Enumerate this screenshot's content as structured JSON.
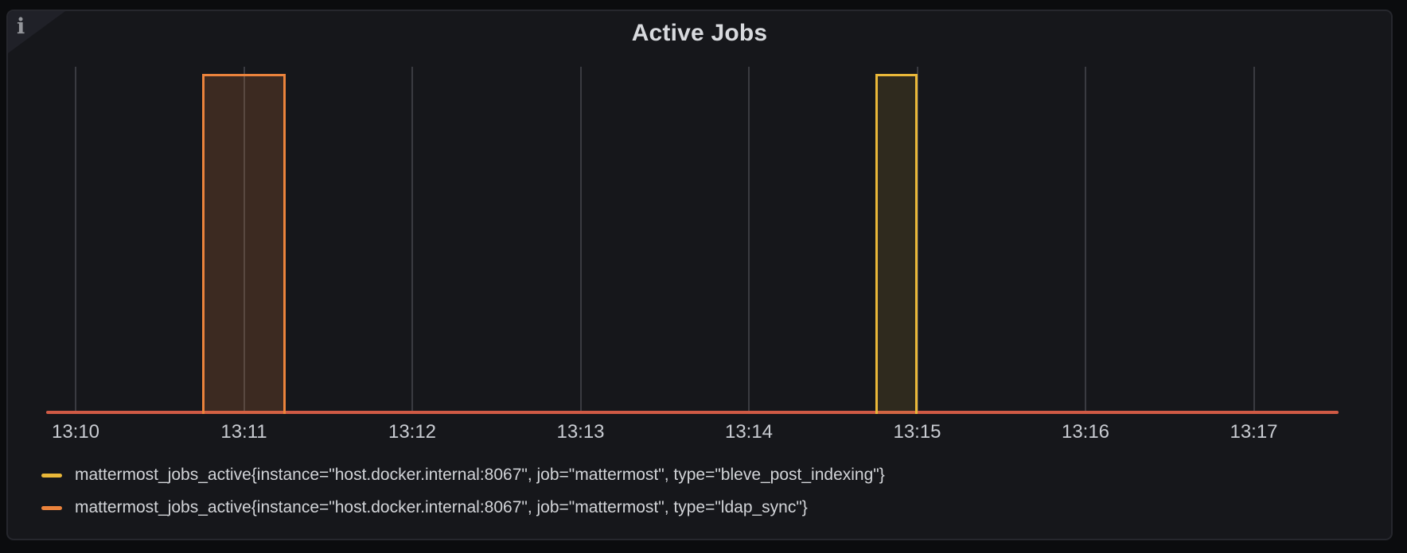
{
  "panel": {
    "title": "Active Jobs",
    "info_glyph": "i"
  },
  "colors": {
    "page_bg": "#0b0c0e",
    "panel_bg": "#16171b",
    "panel_border": "#26272d",
    "grid": "#3a3b41",
    "zero_line": "#cf5a45",
    "axis_text": "#c9ccd2",
    "title_text": "#d8dade",
    "legend_text": "#d2d4d8",
    "yellow_series": "#EAB839",
    "orange_series": "#EB833C"
  },
  "chart_data": {
    "type": "bar",
    "title": "Active Jobs",
    "x_unit": "time (HH:MM)",
    "grid": "vertical-only",
    "legend_position": "bottom-left",
    "ylim": [
      0,
      1.07
    ],
    "x_ticks": [
      {
        "label": "13:10",
        "t": 0
      },
      {
        "label": "13:11",
        "t": 1
      },
      {
        "label": "13:12",
        "t": 2
      },
      {
        "label": "13:13",
        "t": 3
      },
      {
        "label": "13:14",
        "t": 4
      },
      {
        "label": "13:15",
        "t": 5
      },
      {
        "label": "13:16",
        "t": 6
      },
      {
        "label": "13:17",
        "t": 7
      }
    ],
    "series": [
      {
        "name": "mattermost_jobs_active{instance=\"host.docker.internal:8067\", job=\"mattermost\", type=\"bleve_post_indexing\"}",
        "color": "#EAB839",
        "fill_opacity": 0.12,
        "baseline_value": 0,
        "bars": [
          {
            "t_start": 4.75,
            "t_end": 5.0,
            "value": 1,
            "start_label": "13:14:45",
            "end_label": "13:15:00"
          }
        ]
      },
      {
        "name": "mattermost_jobs_active{instance=\"host.docker.internal:8067\", job=\"mattermost\", type=\"ldap_sync\"}",
        "color": "#EB833C",
        "fill_opacity": 0.18,
        "baseline_value": 0,
        "bars": [
          {
            "t_start": 0.75,
            "t_end": 1.25,
            "value": 1,
            "start_label": "13:10:45",
            "end_label": "13:11:15"
          }
        ]
      }
    ]
  }
}
